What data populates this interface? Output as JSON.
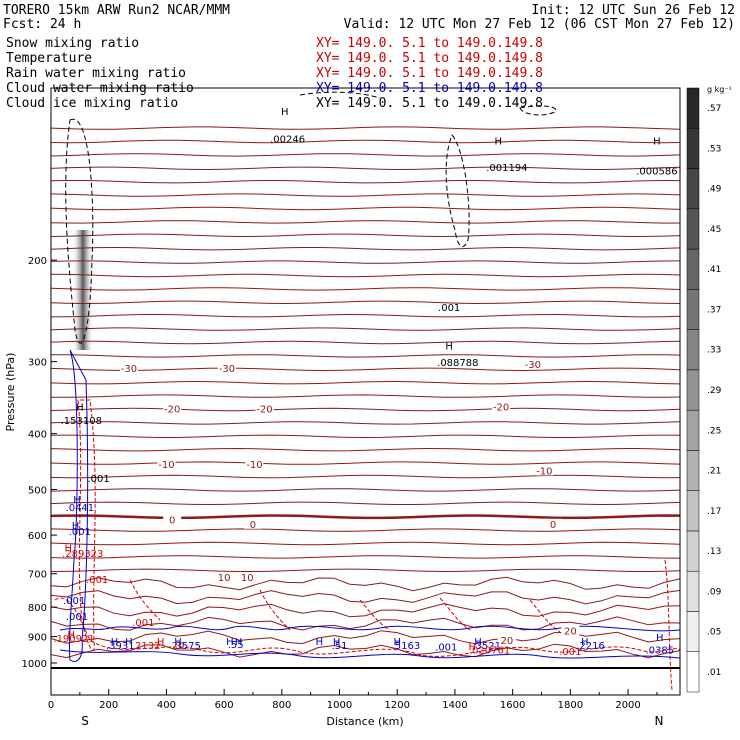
{
  "header": {
    "title": "TORERO  15km ARW   Run2    NCAR/MMM",
    "init": "Init: 12 UTC Sun 26 Feb 12",
    "fcst": "Fcst:   24 h",
    "valid": "Valid: 12 UTC Mon 27 Feb 12 (06 CST Mon 27 Feb 12)"
  },
  "legend": [
    {
      "name": "Snow mixing ratio",
      "xy": "XY= 149.0.  5.1 to 149.0.149.8",
      "color": "#000000"
    },
    {
      "name": "Temperature",
      "xy": "XY= 149.0.  5.1 to 149.0.149.8",
      "color": "#8b0000"
    },
    {
      "name": "Rain water mixing ratio",
      "xy": "XY= 149.0.  5.1 to 149.0.149.8",
      "color": "#dd0000"
    },
    {
      "name": "Cloud water mixing ratio",
      "xy": "XY= 149.0.  5.1 to 149.0.149.8",
      "color": "#0000cc"
    },
    {
      "name": "Cloud ice mixing ratio",
      "xy": "XY= 149.0.  5.1 to 149.0.149.8",
      "color": "#000000"
    }
  ],
  "colors": {
    "temperature": "#8b1a1a",
    "rain": "#dd0000",
    "cloud_water": "#0000cc",
    "ice": "#000000",
    "snow_shade": "#555555"
  },
  "chart_data": {
    "type": "contour-cross-section",
    "xlabel": "Distance (km)",
    "ylabel": "Pressure (hPa)",
    "xlim": [
      0,
      2180
    ],
    "ylim": [
      1000,
      100
    ],
    "y_log": true,
    "x_ticks": [
      0,
      200,
      400,
      600,
      800,
      1000,
      1200,
      1400,
      1600,
      1800,
      2000
    ],
    "y_ticks": [
      200,
      300,
      400,
      500,
      600,
      700,
      800,
      900,
      1000
    ],
    "endpoints": {
      "left": "S",
      "right": "N"
    },
    "colorbar": {
      "unit": "g kg⁻¹",
      "labels": [
        ".01",
        ".05",
        ".09",
        ".13",
        ".17",
        ".21",
        ".25",
        ".29",
        ".33",
        ".37",
        ".41",
        ".45",
        ".49",
        ".53",
        ".57"
      ]
    },
    "temperature_labels": [
      {
        "text": "-30",
        "x": 270,
        "p": 310
      },
      {
        "text": "-30",
        "x": 610,
        "p": 310
      },
      {
        "text": "-30",
        "x": 1670,
        "p": 305
      },
      {
        "text": "-20",
        "x": 420,
        "p": 365
      },
      {
        "text": "-20",
        "x": 740,
        "p": 365
      },
      {
        "text": "-20",
        "x": 1560,
        "p": 362
      },
      {
        "text": "-10",
        "x": 400,
        "p": 455
      },
      {
        "text": "-10",
        "x": 705,
        "p": 455
      },
      {
        "text": "-10",
        "x": 1710,
        "p": 467
      },
      {
        "text": "0",
        "x": 420,
        "p": 568
      },
      {
        "text": "0",
        "x": 700,
        "p": 578
      },
      {
        "text": "0",
        "x": 1740,
        "p": 578
      },
      {
        "text": "10",
        "x": 600,
        "p": 715
      },
      {
        "text": "10",
        "x": 680,
        "p": 715
      },
      {
        "text": "20",
        "x": 1800,
        "p": 885
      },
      {
        "text": "20",
        "x": 1580,
        "p": 920
      }
    ],
    "max_labels": [
      {
        "text": ".153108",
        "x": 105,
        "p": 385,
        "color": "#000000"
      },
      {
        "text": ".00246",
        "x": 820,
        "p": 125,
        "color": "#000000"
      },
      {
        "text": ".001194",
        "x": 1580,
        "p": 140,
        "color": "#000000"
      },
      {
        "text": ".000586",
        "x": 2100,
        "p": 142,
        "color": "#000000"
      },
      {
        "text": ".001",
        "x": 1380,
        "p": 245,
        "color": "#000000"
      },
      {
        "text": ".088788",
        "x": 1410,
        "p": 305,
        "color": "#000000"
      },
      {
        "text": ".001",
        "x": 165,
        "p": 485,
        "color": "#000000"
      },
      {
        "text": ".0441",
        "x": 100,
        "p": 545,
        "color": "#0000cc"
      },
      {
        "text": ".001",
        "x": 100,
        "p": 600,
        "color": "#0000cc"
      },
      {
        "text": ".289323",
        "x": 110,
        "p": 655,
        "color": "#dd0000"
      },
      {
        "text": ".001",
        "x": 160,
        "p": 726,
        "color": "#dd0000"
      },
      {
        "text": ".001",
        "x": 80,
        "p": 790,
        "color": "#0000cc"
      },
      {
        "text": ".001",
        "x": 90,
        "p": 843,
        "color": "#0000cc"
      },
      {
        "text": ".001",
        "x": 320,
        "p": 862,
        "color": "#dd0000"
      },
      {
        "text": ".190921",
        "x": 80,
        "p": 920,
        "color": "#dd0000"
      },
      {
        "text": ".3931",
        "x": 240,
        "p": 945,
        "color": "#0000cc"
      },
      {
        "text": ".2132",
        "x": 330,
        "p": 945,
        "color": "#dd0000"
      },
      {
        "text": ".3575",
        "x": 470,
        "p": 945,
        "color": "#0000cc"
      },
      {
        "text": ".55",
        "x": 640,
        "p": 942,
        "color": "#0000cc"
      },
      {
        "text": ".51",
        "x": 1000,
        "p": 945,
        "color": "#0000cc"
      },
      {
        "text": ".5163",
        "x": 1230,
        "p": 945,
        "color": "#0000cc"
      },
      {
        "text": ".001",
        "x": 1370,
        "p": 952,
        "color": "#0000cc"
      },
      {
        "text": ".3521",
        "x": 1510,
        "p": 945,
        "color": "#0000cc"
      },
      {
        "text": ".020761",
        "x": 1520,
        "p": 962,
        "color": "#dd0000"
      },
      {
        "text": ".001",
        "x": 1800,
        "p": 968,
        "color": "#dd0000"
      },
      {
        "text": ".2216",
        "x": 1870,
        "p": 945,
        "color": "#0000cc"
      },
      {
        "text": ".0385",
        "x": 2110,
        "p": 962,
        "color": "#0000cc"
      },
      {
        "text": "20",
        "x": 440,
        "p": 945,
        "color": "#8b1a1a"
      }
    ],
    "h_labels": [
      {
        "x": 100,
        "p": 365,
        "color": "#000000"
      },
      {
        "x": 810,
        "p": 112,
        "color": "#000000"
      },
      {
        "x": 1550,
        "p": 126,
        "color": "#000000"
      },
      {
        "x": 2100,
        "p": 126,
        "color": "#000000"
      },
      {
        "x": 1380,
        "p": 286,
        "color": "#000000"
      },
      {
        "x": 90,
        "p": 528,
        "color": "#0000cc"
      },
      {
        "x": 85,
        "p": 585,
        "color": "#0000cc"
      },
      {
        "x": 60,
        "p": 640,
        "color": "#dd0000"
      },
      {
        "x": 70,
        "p": 905,
        "color": "#dd0000"
      },
      {
        "x": 220,
        "p": 930,
        "color": "#0000cc"
      },
      {
        "x": 270,
        "p": 930,
        "color": "#0000cc"
      },
      {
        "x": 380,
        "p": 930,
        "color": "#dd0000"
      },
      {
        "x": 440,
        "p": 930,
        "color": "#0000cc"
      },
      {
        "x": 620,
        "p": 930,
        "color": "#0000cc"
      },
      {
        "x": 650,
        "p": 930,
        "color": "#0000cc"
      },
      {
        "x": 930,
        "p": 930,
        "color": "#0000cc"
      },
      {
        "x": 990,
        "p": 930,
        "color": "#0000cc"
      },
      {
        "x": 1200,
        "p": 930,
        "color": "#0000cc"
      },
      {
        "x": 1480,
        "p": 930,
        "color": "#0000cc"
      },
      {
        "x": 1460,
        "p": 950,
        "color": "#dd0000"
      },
      {
        "x": 1850,
        "p": 930,
        "color": "#0000cc"
      },
      {
        "x": 2110,
        "p": 915,
        "color": "#0000cc"
      }
    ]
  }
}
